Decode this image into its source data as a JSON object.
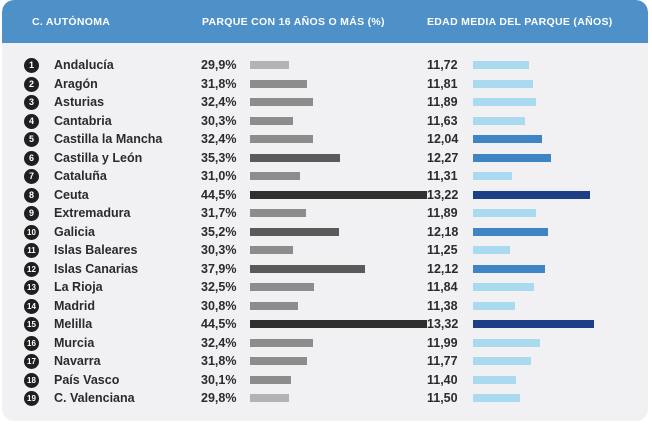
{
  "header": {
    "col1": "C. AUTÓNOMA",
    "col2": "PARQUE CON 16 AÑOS O MÁS (%)",
    "col3": "EDAD MEDIA DEL PARQUE (AÑOS)"
  },
  "colors": {
    "header_bg": "#4e90c8",
    "card_bg": "#f1f1f3",
    "pct_bar_light": "#b3b3b3",
    "pct_bar_mid": "#8c8c8c",
    "pct_bar_dark": "#5a5a5a",
    "pct_bar_darkest": "#2f2f2f",
    "age_bar_light": "#a9daf0",
    "age_bar_mid": "#3f84c4",
    "age_bar_dark": "#1d3f86"
  },
  "chart_data": {
    "type": "table",
    "columns": [
      "C. AUTÓNOMA",
      "PARQUE CON 16 AÑOS O MÁS (%)",
      "EDAD MEDIA DEL PARQUE (AÑOS)"
    ],
    "rows": [
      {
        "num": "1",
        "name": "Andalucía",
        "pct_label": "29,9%",
        "pct": 29.9,
        "age_label": "11,72",
        "age": 11.72
      },
      {
        "num": "2",
        "name": "Aragón",
        "pct_label": "31,8%",
        "pct": 31.8,
        "age_label": "11,81",
        "age": 11.81
      },
      {
        "num": "3",
        "name": "Asturias",
        "pct_label": "32,4%",
        "pct": 32.4,
        "age_label": "11,89",
        "age": 11.89
      },
      {
        "num": "4",
        "name": "Cantabria",
        "pct_label": "30,3%",
        "pct": 30.3,
        "age_label": "11,63",
        "age": 11.63
      },
      {
        "num": "5",
        "name": "Castilla la Mancha",
        "pct_label": "32,4%",
        "pct": 32.4,
        "age_label": "12,04",
        "age": 12.04
      },
      {
        "num": "6",
        "name": "Castilla y León",
        "pct_label": "35,3%",
        "pct": 35.3,
        "age_label": "12,27",
        "age": 12.27
      },
      {
        "num": "7",
        "name": "Cataluña",
        "pct_label": "31,0%",
        "pct": 31.0,
        "age_label": "11,31",
        "age": 11.31
      },
      {
        "num": "8",
        "name": "Ceuta",
        "pct_label": "44,5%",
        "pct": 44.5,
        "age_label": "13,22",
        "age": 13.22
      },
      {
        "num": "9",
        "name": "Extremadura",
        "pct_label": "31,7%",
        "pct": 31.7,
        "age_label": "11,89",
        "age": 11.89
      },
      {
        "num": "10",
        "name": "Galicia",
        "pct_label": "35,2%",
        "pct": 35.2,
        "age_label": "12,18",
        "age": 12.18
      },
      {
        "num": "11",
        "name": "Islas Baleares",
        "pct_label": "30,3%",
        "pct": 30.3,
        "age_label": "11,25",
        "age": 11.25
      },
      {
        "num": "12",
        "name": "Islas Canarias",
        "pct_label": "37,9%",
        "pct": 37.9,
        "age_label": "12,12",
        "age": 12.12
      },
      {
        "num": "13",
        "name": "La Rioja",
        "pct_label": "32,5%",
        "pct": 32.5,
        "age_label": "11,84",
        "age": 11.84
      },
      {
        "num": "14",
        "name": "Madrid",
        "pct_label": "30,8%",
        "pct": 30.8,
        "age_label": "11,38",
        "age": 11.38
      },
      {
        "num": "15",
        "name": "Melilla",
        "pct_label": "44,5%",
        "pct": 44.5,
        "age_label": "13,32",
        "age": 13.32
      },
      {
        "num": "16",
        "name": "Murcia",
        "pct_label": "32,4%",
        "pct": 32.4,
        "age_label": "11,99",
        "age": 11.99
      },
      {
        "num": "17",
        "name": "Navarra",
        "pct_label": "31,8%",
        "pct": 31.8,
        "age_label": "11,77",
        "age": 11.77
      },
      {
        "num": "18",
        "name": "País Vasco",
        "pct_label": "30,1%",
        "pct": 30.1,
        "age_label": "11,40",
        "age": 11.4
      },
      {
        "num": "19",
        "name": "C. Valenciana",
        "pct_label": "29,8%",
        "pct": 29.8,
        "age_label": "11,50",
        "age": 11.5
      }
    ]
  }
}
